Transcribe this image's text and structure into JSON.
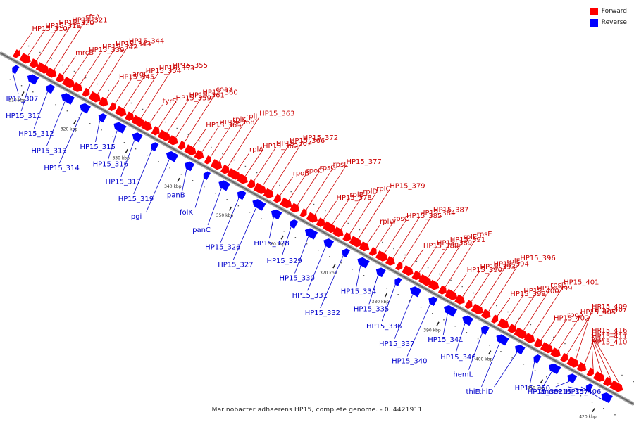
{
  "caption": "Marinobacter adhaerens HP15, complete genome. - 0..4421911",
  "legend": {
    "forward": {
      "label": "Forward",
      "color": "#ff0000"
    },
    "reverse": {
      "label": "Reverse",
      "color": "#0000ff"
    }
  },
  "colors": {
    "backbone": "#666666",
    "backbone_edge": "#aaaaaa",
    "label_forward": "#cc0000",
    "label_reverse": "#0000cc"
  },
  "ticks": [
    "310 kbp",
    "320 kbp",
    "330 kbp",
    "340 kbp",
    "350 kbp",
    "360 kbp",
    "370 kbp",
    "380 kbp",
    "390 kbp",
    "400 kbp",
    "410 kbp",
    "420 kbp"
  ],
  "forward_labels": [
    "HP15_310",
    "HP15_318",
    "HP15_320",
    "HP15_321",
    "sfsA",
    "mrcB",
    "HP15_339",
    "HP15_342",
    "HP15_343",
    "HP15_344",
    "HP15_345",
    "argC",
    "HP15_354",
    "HP15_353",
    "HP15_355",
    "tyrS",
    "HP15_359",
    "HP15_361",
    "HP15_360",
    "coaX",
    "HP15_365",
    "HP15_368",
    "rplK",
    "rplJ",
    "HP15_363",
    "rplA",
    "HP15_362",
    "HP15_367",
    "HP15_366",
    "HP15_372",
    "rpoB",
    "rpoC",
    "rpsG",
    "rpsL",
    "HP15_377",
    "HP15_378",
    "rplB",
    "rplD",
    "rplC",
    "HP15_379",
    "rplW",
    "rpsC",
    "HP15_385",
    "HP15_384",
    "HP15_387",
    "HP15_388",
    "HP15_389",
    "HP15_391",
    "rplE",
    "rpsE",
    "HP15_390",
    "HP15_393",
    "HP15_394",
    "rplF",
    "HP15_396",
    "HP15_398",
    "HP15_400",
    "HP15_399",
    "rpsD",
    "HP15_401",
    "HP15_402",
    "rpoA",
    "HP15_405",
    "HP15_407",
    "HP15_409",
    "HP15_410",
    "ssb",
    "HP15_411",
    "HP15_413",
    "HP15_416"
  ],
  "reverse_labels": [
    "HP15_307",
    "HP15_311",
    "HP15_312",
    "HP15_313",
    "HP15_314",
    "HP15_315",
    "HP15_316",
    "HP15_317",
    "HP15_319",
    "pgi",
    "panB",
    "folK",
    "panC",
    "HP15_326",
    "HP15_327",
    "HP15_328",
    "HP15_329",
    "HP15_330",
    "HP15_331",
    "HP15_332",
    "HP15_334",
    "HP15_335",
    "HP15_336",
    "HP15_337",
    "HP15_340",
    "HP15_341",
    "HP15_346",
    "hemL",
    "thiE",
    "thiD",
    "HP15_350",
    "HP15_351",
    "anmK",
    "HP15_357",
    "HP15_406"
  ]
}
